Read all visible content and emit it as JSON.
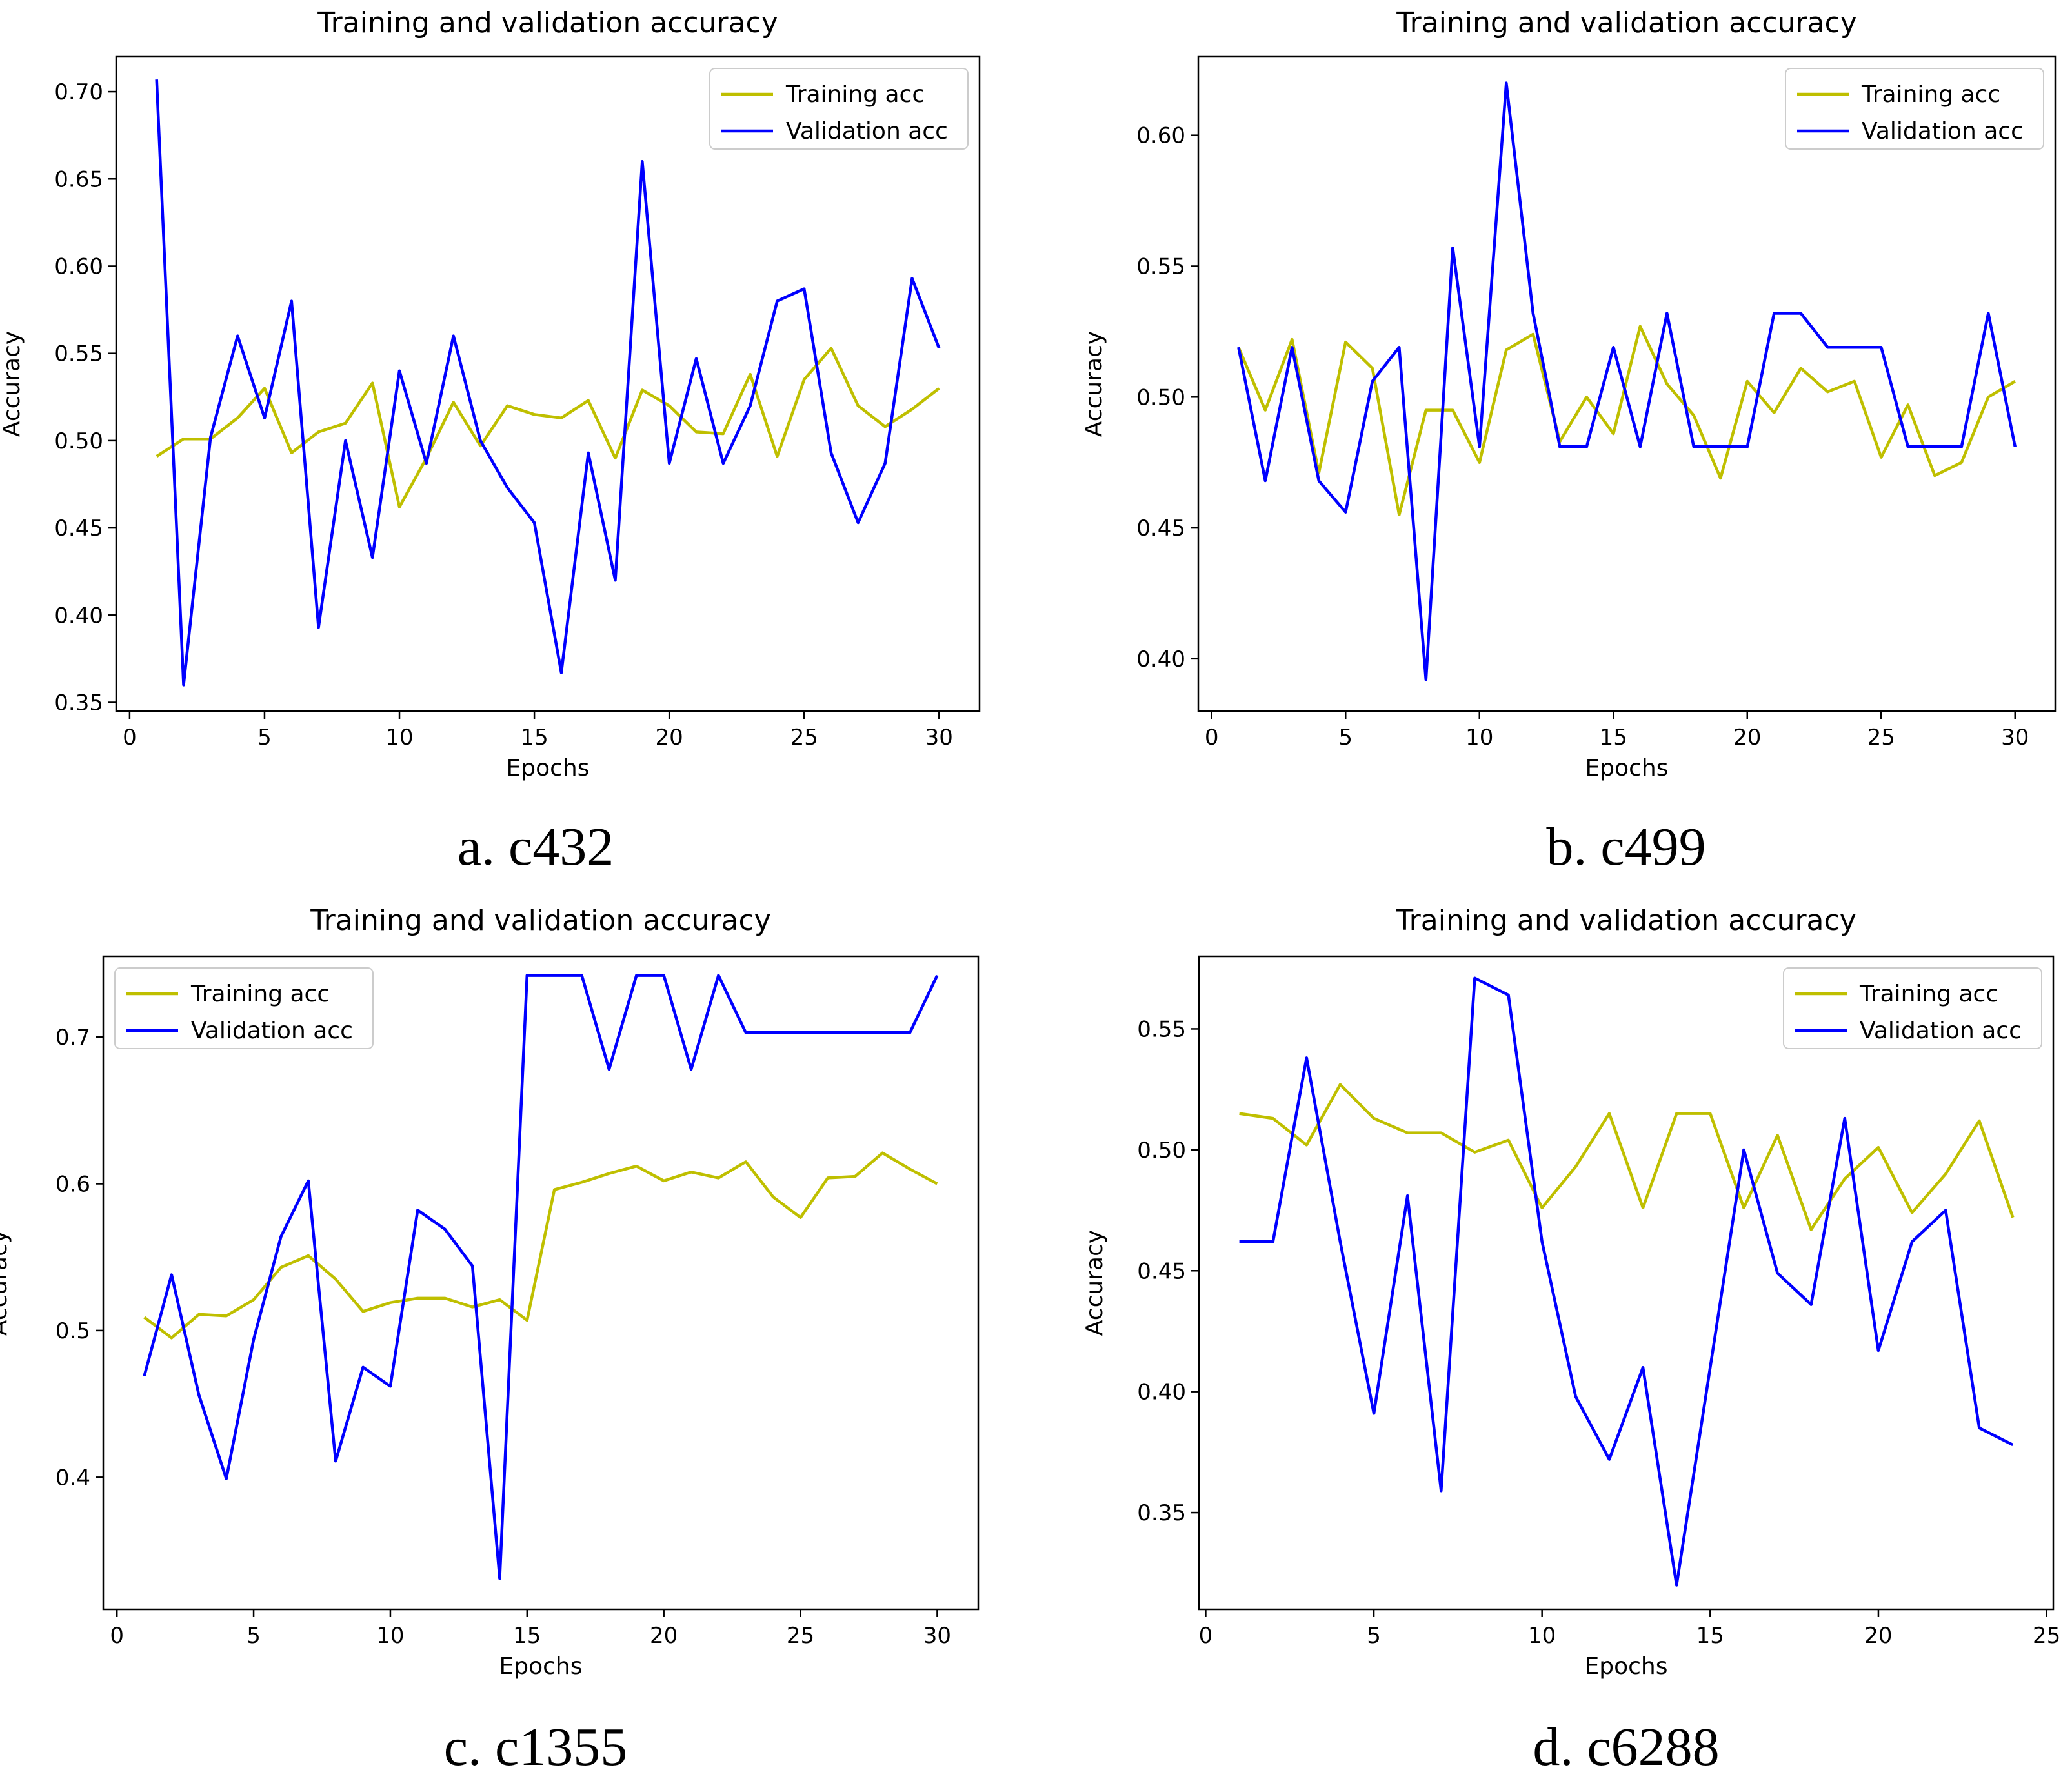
{
  "colors": {
    "training": "#bfbf00",
    "validation": "#0000ff",
    "axis": "#000000",
    "text": "#000000",
    "legend_border": "#cccccc"
  },
  "chart_data": [
    {
      "type": "line",
      "caption": "a. c432",
      "title": "Training and validation accuracy",
      "xlabel": "Epochs",
      "ylabel": "Accuracy",
      "xlim": [
        -0.5,
        31.5
      ],
      "ylim": [
        0.345,
        0.72
      ],
      "xticks": [
        0,
        5,
        10,
        15,
        20,
        25,
        30
      ],
      "yticks": [
        0.35,
        0.4,
        0.45,
        0.5,
        0.55,
        0.6,
        0.65,
        0.7
      ],
      "ytick_labels": [
        "0.35",
        "0.40",
        "0.45",
        "0.50",
        "0.55",
        "0.60",
        "0.65",
        "0.70"
      ],
      "legend_position": "top-right",
      "x": [
        1,
        2,
        3,
        4,
        5,
        6,
        7,
        8,
        9,
        10,
        11,
        12,
        13,
        14,
        15,
        16,
        17,
        18,
        19,
        20,
        21,
        22,
        23,
        24,
        25,
        26,
        27,
        28,
        29,
        30
      ],
      "series": [
        {
          "name": "Training acc",
          "key": "training",
          "values": [
            0.491,
            0.501,
            0.501,
            0.513,
            0.53,
            0.493,
            0.505,
            0.51,
            0.533,
            0.462,
            0.49,
            0.522,
            0.497,
            0.52,
            0.515,
            0.513,
            0.523,
            0.49,
            0.529,
            0.52,
            0.505,
            0.504,
            0.538,
            0.491,
            0.535,
            0.553,
            0.52,
            0.508,
            0.518,
            0.53
          ]
        },
        {
          "name": "Validation acc",
          "key": "validation",
          "values": [
            0.707,
            0.36,
            0.502,
            0.56,
            0.513,
            0.58,
            0.393,
            0.5,
            0.433,
            0.54,
            0.487,
            0.56,
            0.5,
            0.473,
            0.453,
            0.367,
            0.493,
            0.42,
            0.66,
            0.487,
            0.547,
            0.487,
            0.52,
            0.58,
            0.587,
            0.493,
            0.453,
            0.487,
            0.593,
            0.553
          ]
        }
      ]
    },
    {
      "type": "line",
      "caption": "b. c499",
      "title": "Training and validation accuracy",
      "xlabel": "Epochs",
      "ylabel": "Accuracy",
      "xlim": [
        -0.5,
        31.5
      ],
      "ylim": [
        0.38,
        0.63
      ],
      "xticks": [
        0,
        5,
        10,
        15,
        20,
        25,
        30
      ],
      "yticks": [
        0.4,
        0.45,
        0.5,
        0.55,
        0.6
      ],
      "ytick_labels": [
        "0.40",
        "0.45",
        "0.50",
        "0.55",
        "0.60"
      ],
      "legend_position": "top-right",
      "x": [
        1,
        2,
        3,
        4,
        5,
        6,
        7,
        8,
        9,
        10,
        11,
        12,
        13,
        14,
        15,
        16,
        17,
        18,
        19,
        20,
        21,
        22,
        23,
        24,
        25,
        26,
        27,
        28,
        29,
        30
      ],
      "series": [
        {
          "name": "Training acc",
          "key": "training",
          "values": [
            0.519,
            0.495,
            0.522,
            0.471,
            0.521,
            0.511,
            0.455,
            0.495,
            0.495,
            0.475,
            0.518,
            0.524,
            0.483,
            0.5,
            0.486,
            0.527,
            0.505,
            0.493,
            0.469,
            0.506,
            0.494,
            0.511,
            0.502,
            0.506,
            0.477,
            0.497,
            0.47,
            0.475,
            0.5,
            0.506
          ]
        },
        {
          "name": "Validation acc",
          "key": "validation",
          "values": [
            0.519,
            0.468,
            0.519,
            0.468,
            0.456,
            0.506,
            0.519,
            0.392,
            0.557,
            0.481,
            0.62,
            0.532,
            0.481,
            0.481,
            0.519,
            0.481,
            0.532,
            0.481,
            0.481,
            0.481,
            0.532,
            0.532,
            0.519,
            0.519,
            0.519,
            0.481,
            0.481,
            0.481,
            0.532,
            0.481
          ]
        }
      ]
    },
    {
      "type": "line",
      "caption": "c. c1355",
      "title": "Training and validation accuracy",
      "xlabel": "Epochs",
      "ylabel": "Accuracy",
      "xlim": [
        -0.5,
        31.5
      ],
      "ylim": [
        0.31,
        0.755
      ],
      "xticks": [
        0,
        5,
        10,
        15,
        20,
        25,
        30
      ],
      "yticks": [
        0.4,
        0.5,
        0.6,
        0.7
      ],
      "ytick_labels": [
        "0.4",
        "0.5",
        "0.6",
        "0.7"
      ],
      "legend_position": "top-left",
      "x": [
        1,
        2,
        3,
        4,
        5,
        6,
        7,
        8,
        9,
        10,
        11,
        12,
        13,
        14,
        15,
        16,
        17,
        18,
        19,
        20,
        21,
        22,
        23,
        24,
        25,
        26,
        27,
        28,
        29,
        30
      ],
      "series": [
        {
          "name": "Training acc",
          "key": "training",
          "values": [
            0.509,
            0.495,
            0.511,
            0.51,
            0.521,
            0.543,
            0.551,
            0.535,
            0.513,
            0.519,
            0.522,
            0.522,
            0.516,
            0.521,
            0.507,
            0.596,
            0.601,
            0.607,
            0.612,
            0.602,
            0.608,
            0.604,
            0.615,
            0.591,
            0.577,
            0.604,
            0.605,
            0.621,
            0.61,
            0.6
          ]
        },
        {
          "name": "Validation acc",
          "key": "validation",
          "values": [
            0.469,
            0.538,
            0.456,
            0.399,
            0.494,
            0.564,
            0.602,
            0.411,
            0.475,
            0.462,
            0.582,
            0.569,
            0.544,
            0.331,
            0.742,
            0.742,
            0.742,
            0.678,
            0.742,
            0.742,
            0.678,
            0.742,
            0.703,
            0.703,
            0.703,
            0.703,
            0.703,
            0.703,
            0.703,
            0.742
          ]
        }
      ]
    },
    {
      "type": "line",
      "caption": "d. c6288",
      "title": "Training and validation accuracy",
      "xlabel": "Epochs",
      "ylabel": "Accuracy",
      "xlim": [
        -0.2,
        25.2
      ],
      "ylim": [
        0.31,
        0.58
      ],
      "xticks": [
        0,
        5,
        10,
        15,
        20,
        25
      ],
      "yticks": [
        0.35,
        0.4,
        0.45,
        0.5,
        0.55
      ],
      "ytick_labels": [
        "0.35",
        "0.40",
        "0.45",
        "0.50",
        "0.55"
      ],
      "legend_position": "top-right",
      "x": [
        1,
        2,
        3,
        4,
        5,
        6,
        7,
        8,
        9,
        10,
        11,
        12,
        13,
        14,
        15,
        16,
        17,
        18,
        19,
        20,
        21,
        22,
        23,
        24
      ],
      "series": [
        {
          "name": "Training acc",
          "key": "training",
          "values": [
            0.515,
            0.513,
            0.502,
            0.527,
            0.513,
            0.507,
            0.507,
            0.499,
            0.504,
            0.476,
            0.493,
            0.515,
            0.476,
            0.515,
            0.515,
            0.476,
            0.506,
            0.467,
            0.488,
            0.501,
            0.474,
            0.49,
            0.512,
            0.472
          ]
        },
        {
          "name": "Validation acc",
          "key": "validation",
          "values": [
            0.462,
            0.462,
            0.538,
            0.462,
            0.391,
            0.481,
            0.359,
            0.571,
            0.564,
            0.462,
            0.398,
            0.372,
            0.41,
            0.32,
            0.41,
            0.5,
            0.449,
            0.436,
            0.513,
            0.417,
            0.462,
            0.475,
            0.385,
            0.378
          ]
        }
      ]
    }
  ]
}
